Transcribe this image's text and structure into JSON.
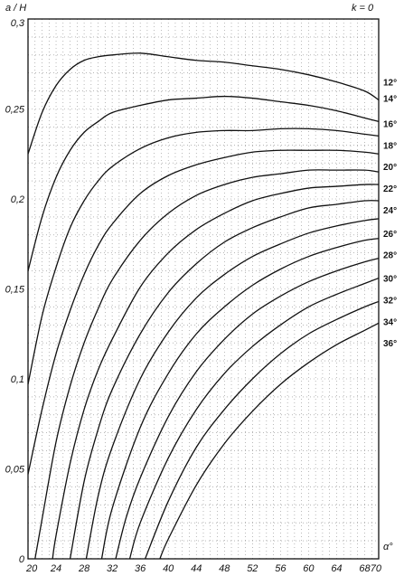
{
  "chart_data": {
    "type": "line",
    "title": "",
    "ylabel": "a / H",
    "xlabel": "α°",
    "parameter_label": "k = 0",
    "xlim": [
      20,
      70
    ],
    "ylim": [
      0,
      0.3
    ],
    "grid": true,
    "x_ticks": [
      20,
      24,
      28,
      32,
      36,
      40,
      44,
      48,
      52,
      56,
      60,
      64,
      68,
      70
    ],
    "x_tick_labels": [
      "20",
      "24",
      "28",
      "32",
      "36",
      "40",
      "44",
      "48",
      "52",
      "56",
      "60",
      "64",
      "68",
      "70"
    ],
    "y_ticks": [
      0,
      0.05,
      0.1,
      0.15,
      0.2,
      0.25,
      0.3
    ],
    "y_tick_labels": [
      "0",
      "0,05",
      "0,1",
      "0,15",
      "0,2",
      "0,25",
      "0,3"
    ],
    "series": [
      {
        "name": "12°",
        "points": [
          [
            20,
            0.225
          ],
          [
            22,
            0.248
          ],
          [
            24,
            0.263
          ],
          [
            26,
            0.272
          ],
          [
            28,
            0.277
          ],
          [
            30,
            0.279
          ],
          [
            32,
            0.28
          ],
          [
            36,
            0.281
          ],
          [
            40,
            0.279
          ],
          [
            44,
            0.277
          ],
          [
            48,
            0.276
          ],
          [
            52,
            0.274
          ],
          [
            56,
            0.272
          ],
          [
            60,
            0.269
          ],
          [
            64,
            0.265
          ],
          [
            68,
            0.26
          ],
          [
            70,
            0.255
          ]
        ]
      },
      {
        "name": "14°",
        "points": [
          [
            20,
            0.16
          ],
          [
            22,
            0.19
          ],
          [
            24,
            0.212
          ],
          [
            26,
            0.227
          ],
          [
            28,
            0.237
          ],
          [
            30,
            0.243
          ],
          [
            32,
            0.248
          ],
          [
            36,
            0.252
          ],
          [
            40,
            0.255
          ],
          [
            44,
            0.256
          ],
          [
            48,
            0.257
          ],
          [
            52,
            0.256
          ],
          [
            56,
            0.254
          ],
          [
            60,
            0.252
          ],
          [
            64,
            0.249
          ],
          [
            68,
            0.245
          ],
          [
            70,
            0.243
          ]
        ]
      },
      {
        "name": "16°",
        "points": [
          [
            20,
            0.097
          ],
          [
            22,
            0.135
          ],
          [
            24,
            0.162
          ],
          [
            26,
            0.184
          ],
          [
            28,
            0.199
          ],
          [
            30,
            0.21
          ],
          [
            32,
            0.218
          ],
          [
            36,
            0.228
          ],
          [
            40,
            0.234
          ],
          [
            44,
            0.237
          ],
          [
            48,
            0.238
          ],
          [
            52,
            0.238
          ],
          [
            56,
            0.239
          ],
          [
            60,
            0.239
          ],
          [
            64,
            0.238
          ],
          [
            68,
            0.236
          ],
          [
            70,
            0.235
          ]
        ]
      },
      {
        "name": "18°",
        "points": [
          [
            20,
            0.047
          ],
          [
            22,
            0.083
          ],
          [
            24,
            0.114
          ],
          [
            26,
            0.138
          ],
          [
            28,
            0.158
          ],
          [
            30,
            0.174
          ],
          [
            32,
            0.186
          ],
          [
            36,
            0.203
          ],
          [
            40,
            0.213
          ],
          [
            44,
            0.219
          ],
          [
            48,
            0.223
          ],
          [
            52,
            0.226
          ],
          [
            56,
            0.227
          ],
          [
            60,
            0.227
          ],
          [
            64,
            0.227
          ],
          [
            68,
            0.226
          ],
          [
            70,
            0.225
          ]
        ]
      },
      {
        "name": "20°",
        "points": [
          [
            21,
            0
          ],
          [
            22,
            0.022
          ],
          [
            24,
            0.065
          ],
          [
            26,
            0.096
          ],
          [
            28,
            0.12
          ],
          [
            30,
            0.139
          ],
          [
            32,
            0.155
          ],
          [
            36,
            0.177
          ],
          [
            40,
            0.192
          ],
          [
            44,
            0.202
          ],
          [
            48,
            0.208
          ],
          [
            52,
            0.212
          ],
          [
            56,
            0.214
          ],
          [
            60,
            0.216
          ],
          [
            64,
            0.216
          ],
          [
            68,
            0.216
          ],
          [
            70,
            0.215
          ]
        ]
      },
      {
        "name": "22°",
        "points": [
          [
            23.5,
            0
          ],
          [
            24,
            0.013
          ],
          [
            26,
            0.053
          ],
          [
            28,
            0.083
          ],
          [
            30,
            0.105
          ],
          [
            32,
            0.122
          ],
          [
            36,
            0.151
          ],
          [
            40,
            0.17
          ],
          [
            44,
            0.183
          ],
          [
            48,
            0.192
          ],
          [
            52,
            0.199
          ],
          [
            56,
            0.203
          ],
          [
            60,
            0.206
          ],
          [
            64,
            0.207
          ],
          [
            68,
            0.208
          ],
          [
            70,
            0.208
          ]
        ]
      },
      {
        "name": "24°",
        "points": [
          [
            26,
            0
          ],
          [
            28,
            0.043
          ],
          [
            30,
            0.072
          ],
          [
            32,
            0.094
          ],
          [
            36,
            0.125
          ],
          [
            40,
            0.148
          ],
          [
            44,
            0.164
          ],
          [
            48,
            0.176
          ],
          [
            52,
            0.184
          ],
          [
            56,
            0.19
          ],
          [
            60,
            0.195
          ],
          [
            64,
            0.197
          ],
          [
            68,
            0.199
          ],
          [
            70,
            0.199
          ]
        ]
      },
      {
        "name": "26°",
        "points": [
          [
            28.3,
            0
          ],
          [
            30,
            0.035
          ],
          [
            32,
            0.062
          ],
          [
            36,
            0.1
          ],
          [
            40,
            0.126
          ],
          [
            44,
            0.145
          ],
          [
            48,
            0.158
          ],
          [
            52,
            0.168
          ],
          [
            56,
            0.175
          ],
          [
            60,
            0.181
          ],
          [
            64,
            0.185
          ],
          [
            68,
            0.188
          ],
          [
            70,
            0.189
          ]
        ]
      },
      {
        "name": "28°",
        "points": [
          [
            30.5,
            0
          ],
          [
            32,
            0.028
          ],
          [
            36,
            0.073
          ],
          [
            40,
            0.103
          ],
          [
            44,
            0.125
          ],
          [
            48,
            0.14
          ],
          [
            52,
            0.152
          ],
          [
            56,
            0.161
          ],
          [
            60,
            0.168
          ],
          [
            64,
            0.173
          ],
          [
            68,
            0.177
          ],
          [
            70,
            0.178
          ]
        ]
      },
      {
        "name": "30°",
        "points": [
          [
            32.5,
            0
          ],
          [
            34,
            0.023
          ],
          [
            36,
            0.045
          ],
          [
            40,
            0.079
          ],
          [
            44,
            0.104
          ],
          [
            48,
            0.122
          ],
          [
            52,
            0.136
          ],
          [
            56,
            0.146
          ],
          [
            60,
            0.154
          ],
          [
            64,
            0.16
          ],
          [
            68,
            0.165
          ],
          [
            70,
            0.167
          ]
        ]
      },
      {
        "name": "32°",
        "points": [
          [
            34.5,
            0
          ],
          [
            36,
            0.02
          ],
          [
            40,
            0.056
          ],
          [
            44,
            0.083
          ],
          [
            48,
            0.103
          ],
          [
            52,
            0.118
          ],
          [
            56,
            0.13
          ],
          [
            60,
            0.14
          ],
          [
            64,
            0.147
          ],
          [
            68,
            0.153
          ],
          [
            70,
            0.156
          ]
        ]
      },
      {
        "name": "34°",
        "points": [
          [
            36.7,
            0
          ],
          [
            40,
            0.032
          ],
          [
            44,
            0.062
          ],
          [
            48,
            0.083
          ],
          [
            52,
            0.1
          ],
          [
            56,
            0.114
          ],
          [
            60,
            0.125
          ],
          [
            64,
            0.133
          ],
          [
            68,
            0.14
          ],
          [
            70,
            0.143
          ]
        ]
      },
      {
        "name": "36°",
        "points": [
          [
            38.8,
            0
          ],
          [
            40,
            0.011
          ],
          [
            44,
            0.041
          ],
          [
            48,
            0.064
          ],
          [
            52,
            0.082
          ],
          [
            56,
            0.097
          ],
          [
            60,
            0.109
          ],
          [
            64,
            0.119
          ],
          [
            68,
            0.127
          ],
          [
            70,
            0.131
          ]
        ]
      }
    ],
    "curve_label_positions": [
      0.265,
      0.256,
      0.242,
      0.23,
      0.218,
      0.206,
      0.194,
      0.181,
      0.169,
      0.156,
      0.144,
      0.132,
      0.12
    ]
  }
}
